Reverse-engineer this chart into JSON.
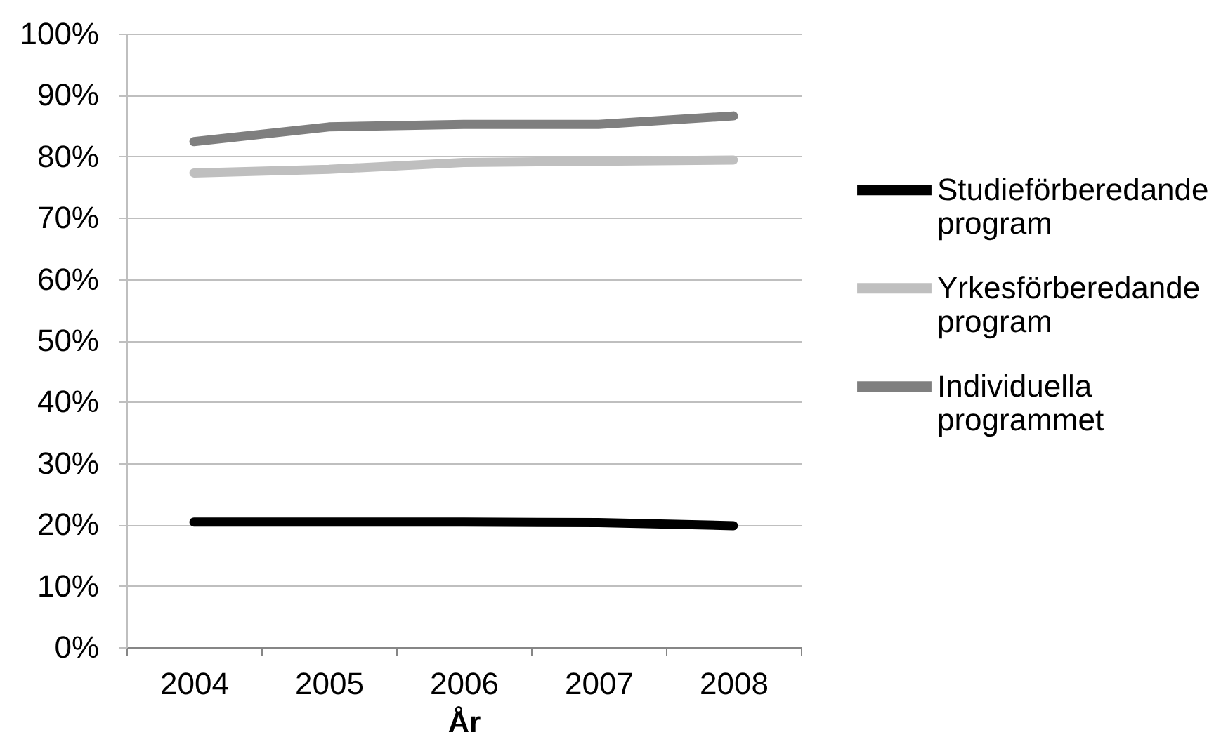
{
  "chart_data": {
    "type": "line",
    "xlabel": "År",
    "categories": [
      "2004",
      "2005",
      "2006",
      "2007",
      "2008"
    ],
    "series": [
      {
        "name": "Studieförberedande program",
        "color": "#000000",
        "values": [
          20.4,
          20.4,
          20.4,
          20.3,
          19.8
        ]
      },
      {
        "name": "Yrkesförberedande program",
        "color": "#bfbfbf",
        "values": [
          77.3,
          77.9,
          79.0,
          79.2,
          79.4
        ]
      },
      {
        "name": "Individuella programmet",
        "color": "#7f7f7f",
        "values": [
          82.4,
          84.8,
          85.2,
          85.2,
          86.6
        ]
      }
    ],
    "ylim": [
      0,
      100
    ],
    "yticks": [
      {
        "value": 0,
        "label": "0%"
      },
      {
        "value": 10,
        "label": "10%"
      },
      {
        "value": 20,
        "label": "20%"
      },
      {
        "value": 30,
        "label": "30%"
      },
      {
        "value": 40,
        "label": "40%"
      },
      {
        "value": 50,
        "label": "50%"
      },
      {
        "value": 60,
        "label": "60%"
      },
      {
        "value": 70,
        "label": "70%"
      },
      {
        "value": 80,
        "label": "80%"
      },
      {
        "value": 90,
        "label": "90%"
      },
      {
        "value": 100,
        "label": "100%"
      }
    ],
    "grid": "y",
    "legend": "right"
  }
}
